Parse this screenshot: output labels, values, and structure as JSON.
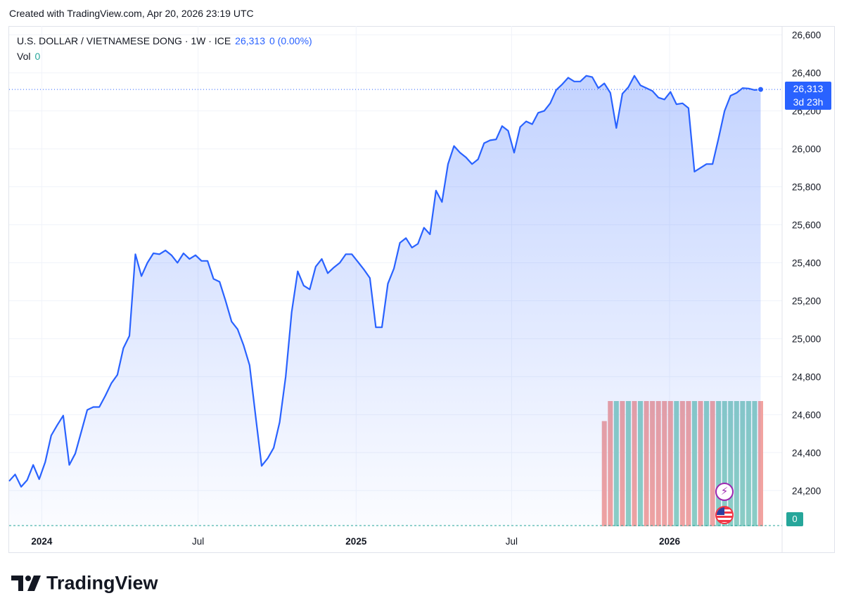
{
  "header": {
    "created_text": "Created with TradingView.com, Apr 20, 2026 23:19 UTC"
  },
  "legend": {
    "symbol": "U.S. DOLLAR / VIETNAMESE DONG · 1W · ICE",
    "last": "26,313",
    "change": "0 (0.00%)",
    "volume_label": "Vol",
    "volume_value": "0"
  },
  "price_badge": {
    "price": "26,313",
    "countdown": "3d 23h"
  },
  "volume_badge": {
    "value": "0"
  },
  "brand": {
    "logo_text": "TradingView"
  },
  "colors": {
    "line": "#2962ff",
    "volume_up": "#26a69a",
    "volume_down": "#ef5350",
    "badge": "#2962ff"
  },
  "icons": [
    "lightning-icon",
    "us-flag-icon",
    "tradingview-logo-icon"
  ],
  "chart_data": {
    "type": "area",
    "ylim": [
      24012,
      26647
    ],
    "xlim": [
      "2023-11-24",
      "2026-05-12"
    ],
    "price_axis_position": "right",
    "y_ticks": [
      "24,200",
      "24,400",
      "24,600",
      "24,800",
      "25,000",
      "25,200",
      "25,400",
      "25,600",
      "25,800",
      "26,000",
      "26,200",
      "26,400",
      "26,600"
    ],
    "x_ticks": [
      {
        "label": "2024",
        "date": "2024-01-01",
        "bold": true
      },
      {
        "label": "Jul",
        "date": "2024-07-01",
        "bold": false
      },
      {
        "label": "2025",
        "date": "2025-01-01",
        "bold": true
      },
      {
        "label": "Jul",
        "date": "2025-07-01",
        "bold": false
      },
      {
        "label": "2026",
        "date": "2026-01-01",
        "bold": true
      }
    ],
    "last_price": 26313,
    "series": [
      {
        "values": [
          [
            "2023-11-24",
            24250
          ],
          [
            "2023-12-01",
            24285
          ],
          [
            "2023-12-08",
            24220
          ],
          [
            "2023-12-15",
            24255
          ],
          [
            "2023-12-22",
            24335
          ],
          [
            "2023-12-29",
            24260
          ],
          [
            "2024-01-05",
            24350
          ],
          [
            "2024-01-12",
            24490
          ],
          [
            "2024-01-19",
            24545
          ],
          [
            "2024-01-26",
            24595
          ],
          [
            "2024-02-02",
            24335
          ],
          [
            "2024-02-09",
            24395
          ],
          [
            "2024-02-16",
            24510
          ],
          [
            "2024-02-23",
            24625
          ],
          [
            "2024-03-01",
            24640
          ],
          [
            "2024-03-08",
            24640
          ],
          [
            "2024-03-15",
            24700
          ],
          [
            "2024-03-22",
            24765
          ],
          [
            "2024-03-29",
            24810
          ],
          [
            "2024-04-05",
            24950
          ],
          [
            "2024-04-12",
            25015
          ],
          [
            "2024-04-19",
            25445
          ],
          [
            "2024-04-26",
            25330
          ],
          [
            "2024-05-03",
            25400
          ],
          [
            "2024-05-10",
            25450
          ],
          [
            "2024-05-17",
            25445
          ],
          [
            "2024-05-24",
            25465
          ],
          [
            "2024-05-31",
            25440
          ],
          [
            "2024-06-07",
            25400
          ],
          [
            "2024-06-14",
            25450
          ],
          [
            "2024-06-21",
            25420
          ],
          [
            "2024-06-28",
            25440
          ],
          [
            "2024-07-05",
            25410
          ],
          [
            "2024-07-12",
            25410
          ],
          [
            "2024-07-19",
            25315
          ],
          [
            "2024-07-26",
            25300
          ],
          [
            "2024-08-02",
            25200
          ],
          [
            "2024-08-09",
            25090
          ],
          [
            "2024-08-16",
            25050
          ],
          [
            "2024-08-23",
            24965
          ],
          [
            "2024-08-30",
            24860
          ],
          [
            "2024-09-06",
            24590
          ],
          [
            "2024-09-13",
            24330
          ],
          [
            "2024-09-20",
            24370
          ],
          [
            "2024-09-27",
            24425
          ],
          [
            "2024-10-04",
            24560
          ],
          [
            "2024-10-11",
            24800
          ],
          [
            "2024-10-18",
            25140
          ],
          [
            "2024-10-25",
            25355
          ],
          [
            "2024-11-01",
            25280
          ],
          [
            "2024-11-08",
            25260
          ],
          [
            "2024-11-15",
            25380
          ],
          [
            "2024-11-22",
            25420
          ],
          [
            "2024-11-29",
            25345
          ],
          [
            "2024-12-06",
            25375
          ],
          [
            "2024-12-13",
            25400
          ],
          [
            "2024-12-20",
            25445
          ],
          [
            "2024-12-27",
            25445
          ],
          [
            "2025-01-03",
            25405
          ],
          [
            "2025-01-10",
            25365
          ],
          [
            "2025-01-17",
            25320
          ],
          [
            "2025-01-24",
            25060
          ],
          [
            "2025-01-31",
            25060
          ],
          [
            "2025-02-07",
            25290
          ],
          [
            "2025-02-14",
            25370
          ],
          [
            "2025-02-21",
            25505
          ],
          [
            "2025-02-28",
            25530
          ],
          [
            "2025-03-07",
            25480
          ],
          [
            "2025-03-14",
            25500
          ],
          [
            "2025-03-21",
            25585
          ],
          [
            "2025-03-28",
            25550
          ],
          [
            "2025-04-04",
            25780
          ],
          [
            "2025-04-11",
            25720
          ],
          [
            "2025-04-18",
            25920
          ],
          [
            "2025-04-25",
            26015
          ],
          [
            "2025-05-02",
            25980
          ],
          [
            "2025-05-09",
            25955
          ],
          [
            "2025-05-16",
            25920
          ],
          [
            "2025-05-23",
            25945
          ],
          [
            "2025-05-30",
            26030
          ],
          [
            "2025-06-06",
            26045
          ],
          [
            "2025-06-13",
            26050
          ],
          [
            "2025-06-20",
            26120
          ],
          [
            "2025-06-27",
            26095
          ],
          [
            "2025-07-04",
            25980
          ],
          [
            "2025-07-11",
            26115
          ],
          [
            "2025-07-18",
            26145
          ],
          [
            "2025-07-25",
            26130
          ],
          [
            "2025-08-01",
            26190
          ],
          [
            "2025-08-08",
            26200
          ],
          [
            "2025-08-15",
            26240
          ],
          [
            "2025-08-22",
            26310
          ],
          [
            "2025-08-29",
            26340
          ],
          [
            "2025-09-05",
            26375
          ],
          [
            "2025-09-12",
            26355
          ],
          [
            "2025-09-19",
            26355
          ],
          [
            "2025-09-26",
            26385
          ],
          [
            "2025-10-03",
            26378
          ],
          [
            "2025-10-10",
            26320
          ],
          [
            "2025-10-17",
            26345
          ],
          [
            "2025-10-24",
            26295
          ],
          [
            "2025-10-31",
            26110
          ],
          [
            "2025-11-07",
            26290
          ],
          [
            "2025-11-14",
            26325
          ],
          [
            "2025-11-21",
            26385
          ],
          [
            "2025-11-28",
            26335
          ],
          [
            "2025-12-05",
            26320
          ],
          [
            "2025-12-12",
            26305
          ],
          [
            "2025-12-19",
            26270
          ],
          [
            "2025-12-26",
            26260
          ],
          [
            "2026-01-02",
            26300
          ],
          [
            "2026-01-09",
            26235
          ],
          [
            "2026-01-16",
            26240
          ],
          [
            "2026-01-23",
            26215
          ],
          [
            "2026-01-30",
            25880
          ],
          [
            "2026-02-06",
            25900
          ],
          [
            "2026-02-13",
            25920
          ],
          [
            "2026-02-20",
            25920
          ],
          [
            "2026-02-27",
            26055
          ],
          [
            "2026-03-06",
            26200
          ],
          [
            "2026-03-13",
            26280
          ],
          [
            "2026-03-20",
            26295
          ],
          [
            "2026-03-27",
            26320
          ],
          [
            "2026-04-03",
            26318
          ],
          [
            "2026-04-10",
            26310
          ],
          [
            "2026-04-17",
            26313
          ]
        ]
      }
    ],
    "volume": {
      "ylim": [
        0,
        1
      ],
      "bars": [
        [
          "2025-10-17",
          0.84,
          "down"
        ],
        [
          "2025-10-24",
          1,
          "down"
        ],
        [
          "2025-10-31",
          1,
          "up"
        ],
        [
          "2025-11-07",
          1,
          "down"
        ],
        [
          "2025-11-14",
          1,
          "up"
        ],
        [
          "2025-11-21",
          1,
          "down"
        ],
        [
          "2025-11-28",
          1,
          "up"
        ],
        [
          "2025-12-05",
          1,
          "down"
        ],
        [
          "2025-12-12",
          1,
          "down"
        ],
        [
          "2025-12-19",
          1,
          "down"
        ],
        [
          "2025-12-26",
          1,
          "down"
        ],
        [
          "2026-01-02",
          1,
          "down"
        ],
        [
          "2026-01-09",
          1,
          "up"
        ],
        [
          "2026-01-16",
          1,
          "down"
        ],
        [
          "2026-01-23",
          1,
          "down"
        ],
        [
          "2026-01-30",
          1,
          "up"
        ],
        [
          "2026-02-06",
          1,
          "down"
        ],
        [
          "2026-02-13",
          1,
          "up"
        ],
        [
          "2026-02-20",
          1,
          "down"
        ],
        [
          "2026-02-27",
          1,
          "up"
        ],
        [
          "2026-03-06",
          1,
          "up"
        ],
        [
          "2026-03-13",
          1,
          "up"
        ],
        [
          "2026-03-20",
          1,
          "up"
        ],
        [
          "2026-03-27",
          1,
          "up"
        ],
        [
          "2026-04-03",
          1,
          "up"
        ],
        [
          "2026-04-10",
          1,
          "up"
        ],
        [
          "2026-04-17",
          1,
          "down"
        ]
      ]
    }
  }
}
